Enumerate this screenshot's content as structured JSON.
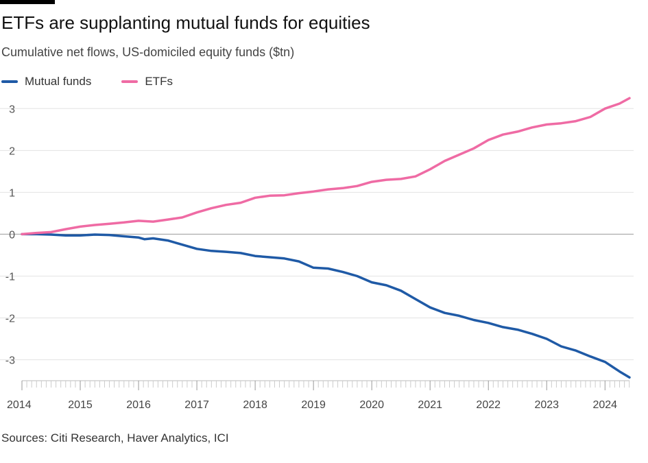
{
  "header": {
    "title": "ETFs are supplanting mutual funds for equities",
    "subtitle": "Cumulative net flows, US-domiciled equity funds ($tn)"
  },
  "source": "Sources: Citi Research, Haver Analytics, ICI",
  "chart_data": {
    "type": "line",
    "title": "ETFs are supplanting mutual funds for equities",
    "subtitle": "Cumulative net flows, US-domiciled equity funds ($tn)",
    "xlabel": "",
    "ylabel": "",
    "xlim": [
      2014.0,
      2024.42
    ],
    "ylim": [
      -3.45,
      3.3
    ],
    "x_ticks": [
      "2014",
      "2015",
      "2016",
      "2017",
      "2018",
      "2019",
      "2020",
      "2021",
      "2022",
      "2023",
      "2024"
    ],
    "y_ticks": [
      "-3",
      "-2",
      "-1",
      "0",
      "1",
      "2",
      "3"
    ],
    "grid": true,
    "legend_position": "top-left",
    "series": [
      {
        "name": "Mutual funds",
        "color": "#1f5aa6",
        "points": [
          [
            2014.0,
            0.0
          ],
          [
            2014.25,
            0.0
          ],
          [
            2014.5,
            -0.01
          ],
          [
            2014.75,
            -0.03
          ],
          [
            2015.0,
            -0.03
          ],
          [
            2015.25,
            -0.01
          ],
          [
            2015.5,
            -0.02
          ],
          [
            2015.75,
            -0.05
          ],
          [
            2016.0,
            -0.08
          ],
          [
            2016.1,
            -0.12
          ],
          [
            2016.25,
            -0.1
          ],
          [
            2016.5,
            -0.15
          ],
          [
            2016.75,
            -0.25
          ],
          [
            2017.0,
            -0.35
          ],
          [
            2017.25,
            -0.4
          ],
          [
            2017.5,
            -0.42
          ],
          [
            2017.75,
            -0.45
          ],
          [
            2018.0,
            -0.52
          ],
          [
            2018.25,
            -0.55
          ],
          [
            2018.5,
            -0.58
          ],
          [
            2018.75,
            -0.65
          ],
          [
            2019.0,
            -0.8
          ],
          [
            2019.25,
            -0.82
          ],
          [
            2019.5,
            -0.9
          ],
          [
            2019.75,
            -1.0
          ],
          [
            2020.0,
            -1.15
          ],
          [
            2020.25,
            -1.22
          ],
          [
            2020.5,
            -1.35
          ],
          [
            2020.75,
            -1.55
          ],
          [
            2021.0,
            -1.75
          ],
          [
            2021.25,
            -1.88
          ],
          [
            2021.5,
            -1.95
          ],
          [
            2021.75,
            -2.05
          ],
          [
            2022.0,
            -2.12
          ],
          [
            2022.25,
            -2.22
          ],
          [
            2022.5,
            -2.28
          ],
          [
            2022.75,
            -2.38
          ],
          [
            2023.0,
            -2.5
          ],
          [
            2023.25,
            -2.68
          ],
          [
            2023.5,
            -2.78
          ],
          [
            2023.75,
            -2.92
          ],
          [
            2024.0,
            -3.05
          ],
          [
            2024.25,
            -3.28
          ],
          [
            2024.42,
            -3.42
          ]
        ]
      },
      {
        "name": "ETFs",
        "color": "#ef6ba4",
        "points": [
          [
            2014.0,
            0.0
          ],
          [
            2014.25,
            0.03
          ],
          [
            2014.5,
            0.05
          ],
          [
            2014.75,
            0.12
          ],
          [
            2015.0,
            0.18
          ],
          [
            2015.25,
            0.22
          ],
          [
            2015.5,
            0.25
          ],
          [
            2015.75,
            0.28
          ],
          [
            2016.0,
            0.32
          ],
          [
            2016.25,
            0.3
          ],
          [
            2016.5,
            0.35
          ],
          [
            2016.75,
            0.4
          ],
          [
            2017.0,
            0.52
          ],
          [
            2017.25,
            0.62
          ],
          [
            2017.5,
            0.7
          ],
          [
            2017.75,
            0.75
          ],
          [
            2018.0,
            0.87
          ],
          [
            2018.25,
            0.92
          ],
          [
            2018.5,
            0.93
          ],
          [
            2018.75,
            0.98
          ],
          [
            2019.0,
            1.02
          ],
          [
            2019.25,
            1.07
          ],
          [
            2019.5,
            1.1
          ],
          [
            2019.75,
            1.15
          ],
          [
            2020.0,
            1.25
          ],
          [
            2020.25,
            1.3
          ],
          [
            2020.5,
            1.32
          ],
          [
            2020.75,
            1.38
          ],
          [
            2021.0,
            1.55
          ],
          [
            2021.25,
            1.75
          ],
          [
            2021.5,
            1.9
          ],
          [
            2021.75,
            2.05
          ],
          [
            2022.0,
            2.25
          ],
          [
            2022.25,
            2.38
          ],
          [
            2022.5,
            2.45
          ],
          [
            2022.75,
            2.55
          ],
          [
            2023.0,
            2.62
          ],
          [
            2023.25,
            2.65
          ],
          [
            2023.5,
            2.7
          ],
          [
            2023.75,
            2.8
          ],
          [
            2024.0,
            3.0
          ],
          [
            2024.25,
            3.12
          ],
          [
            2024.42,
            3.25
          ]
        ]
      }
    ]
  }
}
